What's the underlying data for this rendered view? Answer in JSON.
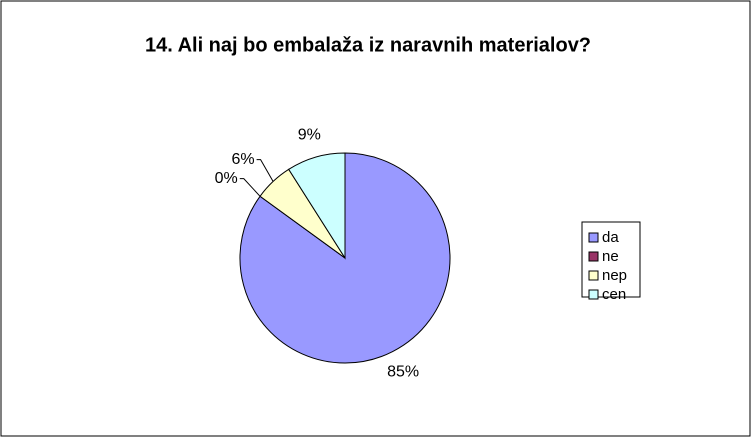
{
  "chart_data": {
    "type": "pie",
    "title": "14. Ali naj bo embalaža iz naravnih materialov?",
    "categories": [
      "da",
      "ne",
      "nep",
      "cen"
    ],
    "values": [
      85,
      0,
      6,
      9
    ],
    "value_labels": [
      "85%",
      "0%",
      "6%",
      "9%"
    ],
    "colors": [
      "#9999ff",
      "#993366",
      "#ffffcc",
      "#ccffff"
    ],
    "legend": "right"
  }
}
